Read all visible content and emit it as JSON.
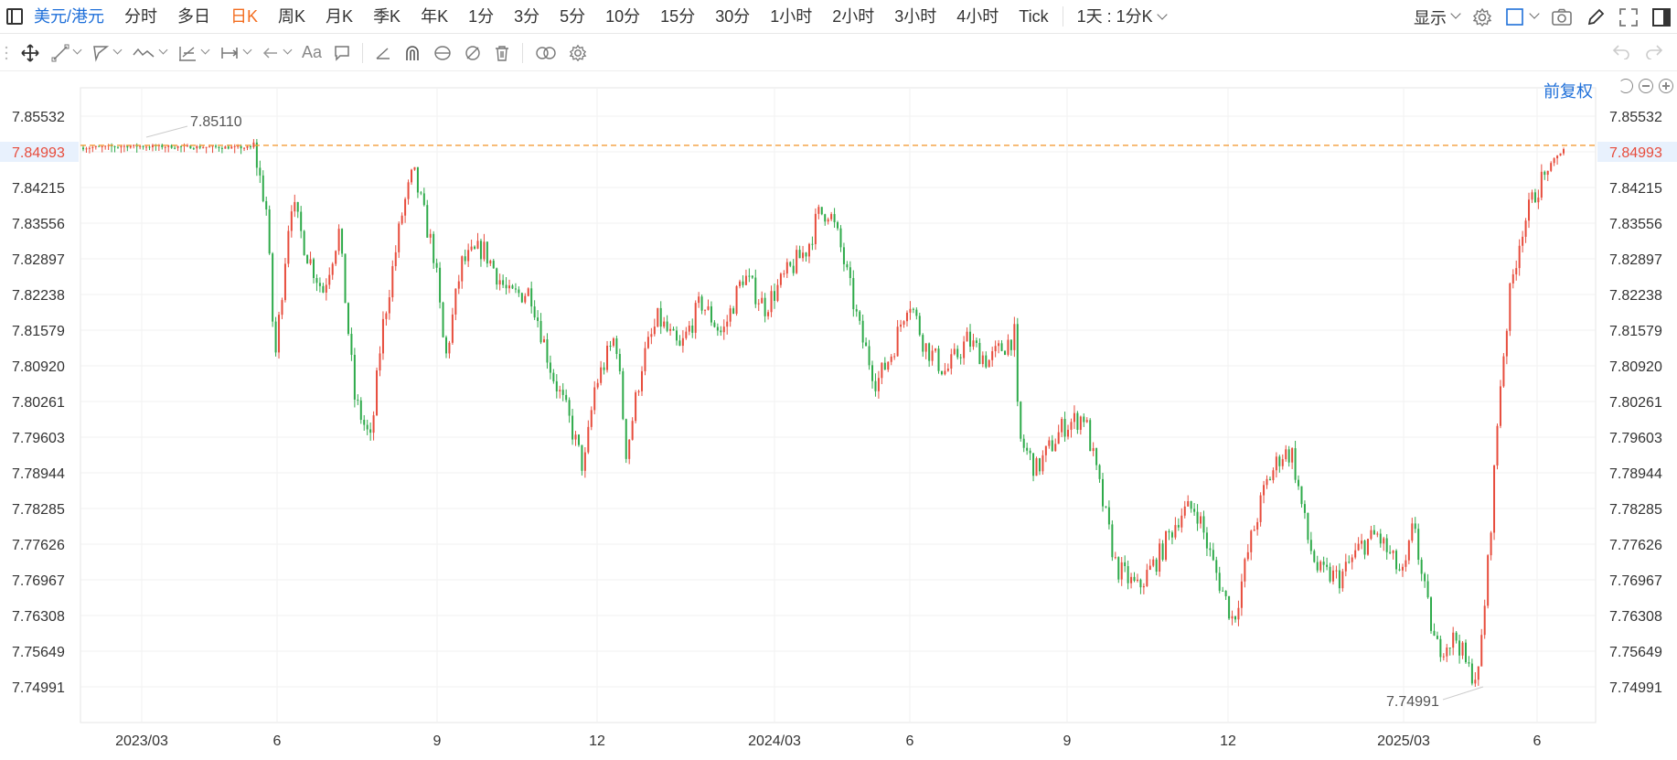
{
  "toolbar": {
    "symbol": "美元/港元",
    "periods": [
      "分时",
      "多日",
      "日K",
      "周K",
      "月K",
      "季K",
      "年K",
      "1分",
      "3分",
      "5分",
      "10分",
      "15分",
      "30分",
      "1小时",
      "2小时",
      "3小时",
      "4小时",
      "Tick"
    ],
    "active_period": "日K",
    "range_select": "1天 : 1分K",
    "display_label": "显示"
  },
  "chart_header": {
    "adjust_label": "前复权"
  },
  "icons": {
    "sidebar": "sidebar-toggle-icon",
    "settings": "gear-icon",
    "layout": "layout-square-icon",
    "camera": "camera-icon",
    "pen": "pen-icon",
    "fullscreen": "fullscreen-icon",
    "panel": "panel-toggle-icon"
  },
  "chart_data": {
    "type": "candlestick",
    "y_ticks": [
      "7.85532",
      "7.84993",
      "7.84215",
      "7.83556",
      "7.82897",
      "7.82238",
      "7.81579",
      "7.80920",
      "7.80261",
      "7.79603",
      "7.78944",
      "7.78285",
      "7.77626",
      "7.76967",
      "7.76308",
      "7.75649",
      "7.74991"
    ],
    "ylim": [
      7.74991,
      7.85532
    ],
    "current_price": "7.84993",
    "x_ticks": [
      "2023/03",
      "6",
      "9",
      "12",
      "2024/03",
      "6",
      "9",
      "12",
      "2025/03",
      "6"
    ],
    "annotations": {
      "high": "7.85110",
      "low": "7.74991"
    },
    "up_color": "#e74c3c",
    "down_color": "#2eaa4a",
    "price_line_color": "#f39c38",
    "path_points": [
      [
        0,
        7.8495
      ],
      [
        40,
        7.8498
      ],
      [
        90,
        7.8497
      ],
      [
        160,
        7.8495
      ],
      [
        172,
        7.838
      ],
      [
        180,
        7.81
      ],
      [
        195,
        7.84
      ],
      [
        210,
        7.83
      ],
      [
        225,
        7.823
      ],
      [
        240,
        7.834
      ],
      [
        255,
        7.803
      ],
      [
        270,
        7.795
      ],
      [
        280,
        7.815
      ],
      [
        300,
        7.838
      ],
      [
        310,
        7.845
      ],
      [
        330,
        7.829
      ],
      [
        340,
        7.81
      ],
      [
        355,
        7.828
      ],
      [
        375,
        7.831
      ],
      [
        400,
        7.822
      ],
      [
        420,
        7.823
      ],
      [
        440,
        7.808
      ],
      [
        455,
        7.8
      ],
      [
        470,
        7.79
      ],
      [
        480,
        7.805
      ],
      [
        500,
        7.815
      ],
      [
        510,
        7.793
      ],
      [
        525,
        7.81
      ],
      [
        540,
        7.818
      ],
      [
        560,
        7.812
      ],
      [
        580,
        7.821
      ],
      [
        600,
        7.815
      ],
      [
        620,
        7.826
      ],
      [
        640,
        7.82
      ],
      [
        660,
        7.826
      ],
      [
        680,
        7.831
      ],
      [
        690,
        7.837
      ],
      [
        700,
        7.838
      ],
      [
        710,
        7.832
      ],
      [
        730,
        7.815
      ],
      [
        745,
        7.806
      ],
      [
        760,
        7.812
      ],
      [
        775,
        7.822
      ],
      [
        790,
        7.813
      ],
      [
        810,
        7.808
      ],
      [
        830,
        7.814
      ],
      [
        850,
        7.81
      ],
      [
        875,
        7.815
      ],
      [
        878,
        7.796
      ],
      [
        895,
        7.79
      ],
      [
        920,
        7.798
      ],
      [
        940,
        7.8
      ],
      [
        955,
        7.786
      ],
      [
        970,
        7.772
      ],
      [
        990,
        7.768
      ],
      [
        1010,
        7.774
      ],
      [
        1030,
        7.782
      ],
      [
        1045,
        7.783
      ],
      [
        1060,
        7.773
      ],
      [
        1080,
        7.762
      ],
      [
        1095,
        7.776
      ],
      [
        1110,
        7.787
      ],
      [
        1125,
        7.793
      ],
      [
        1135,
        7.793
      ],
      [
        1150,
        7.777
      ],
      [
        1160,
        7.771
      ],
      [
        1180,
        7.77
      ],
      [
        1200,
        7.776
      ],
      [
        1215,
        7.778
      ],
      [
        1230,
        7.773
      ],
      [
        1240,
        7.77
      ],
      [
        1250,
        7.781
      ],
      [
        1255,
        7.772
      ],
      [
        1270,
        7.757
      ],
      [
        1290,
        7.759
      ],
      [
        1300,
        7.753
      ],
      [
        1310,
        7.752
      ],
      [
        1320,
        7.775
      ],
      [
        1330,
        7.805
      ],
      [
        1340,
        7.823
      ],
      [
        1350,
        7.834
      ],
      [
        1365,
        7.842
      ],
      [
        1380,
        7.847
      ],
      [
        1390,
        7.8493
      ]
    ]
  }
}
